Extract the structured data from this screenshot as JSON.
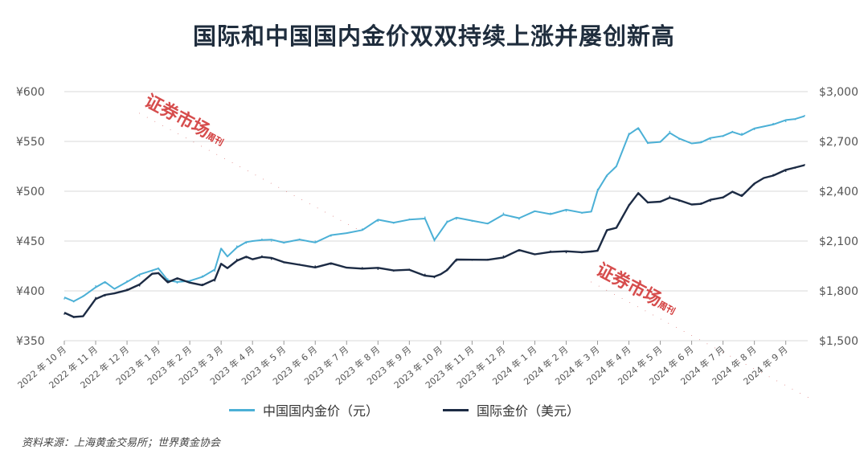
{
  "title": "国际和中国国内金价双双持续上涨并屡创新高",
  "source": "资料来源：上海黄金交易所；世界黄金协会",
  "watermark": {
    "text": "证券市场",
    "suffix": "周刊",
    "dots": "·····························"
  },
  "colors": {
    "china": "#4bb0d6",
    "intl": "#1c2b44",
    "grid": "#d9d9d9"
  },
  "chart_data": {
    "type": "line",
    "title": "国际和中国国内金价双双持续上涨并屡创新高",
    "x_tick_labels": [
      "2022 年 10 月",
      "2022 年 11 月",
      "2022 年 12 月",
      "2023 年 1 月",
      "2023 年 2 月",
      "2023 年 3 月",
      "2023 年 4 月",
      "2023 年 5 月",
      "2023 年 6 月",
      "2023 年 7 月",
      "2023 年 8 月",
      "2023 年 9 月",
      "2023 年 10 月",
      "2023 年 11 月",
      "2023 年 12 月",
      "2024 年 1 月",
      "2024 年 2 月",
      "2024 年 3 月",
      "2024 年 4 月",
      "2024 年 5 月",
      "2024 年 6 月",
      "2024 年 7 月",
      "2024 年 8 月",
      "2024 年 9 月"
    ],
    "y_left": {
      "ticks": [
        "¥350",
        "¥400",
        "¥450",
        "¥500",
        "¥550",
        "¥600"
      ],
      "range": [
        350,
        600
      ]
    },
    "y_right": {
      "ticks": [
        "$1,500",
        "$1,800",
        "$2,100",
        "$2,400",
        "$2,700",
        "$3,000"
      ],
      "range": [
        1500,
        3000
      ]
    },
    "grid": true,
    "legend_position": "bottom",
    "series": [
      {
        "name": "中国国内金价（元）",
        "axis": "left",
        "x_index": [
          0,
          0.3,
          0.6,
          1,
          1.3,
          1.6,
          2,
          2.4,
          2.8,
          3,
          3.3,
          3.6,
          4,
          4.4,
          4.8,
          5,
          5.2,
          5.5,
          5.8,
          6,
          6.3,
          6.6,
          7,
          7.5,
          8,
          8.5,
          9,
          9.5,
          10,
          10.5,
          11,
          11.5,
          11.8,
          12,
          12.2,
          12.5,
          13,
          13.5,
          14,
          14.5,
          15,
          15.5,
          16,
          16.5,
          16.8,
          17,
          17.3,
          17.6,
          18,
          18.3,
          18.6,
          19,
          19.3,
          19.6,
          20,
          20.3,
          20.6,
          21,
          21.3,
          21.6,
          22,
          22.3,
          22.6,
          23,
          23.3,
          23.6
        ],
        "values": [
          392,
          389,
          395,
          405,
          408,
          402,
          410,
          415,
          420,
          423,
          412,
          408,
          410,
          415,
          420,
          442,
          435,
          445,
          448,
          450,
          452,
          450,
          448,
          452,
          450,
          455,
          458,
          462,
          470,
          468,
          472,
          474,
          450,
          460,
          470,
          472,
          470,
          468,
          478,
          472,
          480,
          478,
          480,
          478,
          480,
          502,
          515,
          525,
          558,
          562,
          548,
          550,
          560,
          552,
          548,
          550,
          552,
          555,
          560,
          558,
          562,
          565,
          568,
          570,
          572,
          576
        ]
      },
      {
        "name": "国际金价（美元）",
        "axis": "right",
        "x_index": [
          0,
          0.3,
          0.6,
          1,
          1.3,
          1.6,
          2,
          2.4,
          2.8,
          3,
          3.3,
          3.6,
          4,
          4.4,
          4.8,
          5,
          5.2,
          5.5,
          5.8,
          6,
          6.3,
          6.6,
          7,
          7.5,
          8,
          8.5,
          9,
          9.5,
          10,
          10.5,
          11,
          11.5,
          11.8,
          12,
          12.2,
          12.5,
          13,
          13.5,
          14,
          14.5,
          15,
          15.5,
          16,
          16.5,
          16.8,
          17,
          17.3,
          17.6,
          18,
          18.3,
          18.6,
          19,
          19.3,
          19.6,
          20,
          20.3,
          20.6,
          21,
          21.3,
          21.6,
          22,
          22.3,
          22.6,
          23,
          23.3,
          23.6
        ],
        "values": [
          1660,
          1640,
          1650,
          1760,
          1770,
          1785,
          1810,
          1830,
          1900,
          1910,
          1860,
          1870,
          1850,
          1840,
          1860,
          1960,
          1940,
          1990,
          2000,
          1990,
          2010,
          1990,
          1970,
          1960,
          1950,
          1960,
          1940,
          1940,
          1930,
          1920,
          1930,
          1900,
          1880,
          1900,
          1930,
          1980,
          1985,
          1990,
          2010,
          2040,
          2020,
          2040,
          2030,
          2030,
          2040,
          2050,
          2160,
          2180,
          2320,
          2380,
          2330,
          2340,
          2370,
          2340,
          2320,
          2330,
          2340,
          2360,
          2400,
          2380,
          2440,
          2480,
          2500,
          2520,
          2540,
          2560
        ]
      }
    ]
  }
}
